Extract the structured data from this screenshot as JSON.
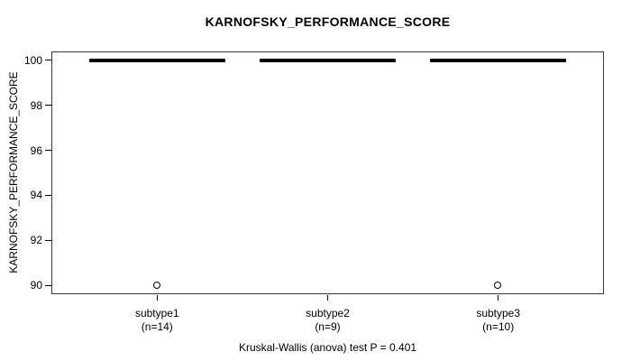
{
  "chart_data": {
    "type": "boxplot",
    "title": "KARNOFSKY_PERFORMANCE_SCORE",
    "ylabel": "KARNOFSKY_PERFORMANCE_SCORE",
    "footer": "Kruskal-Wallis (anova) test P = 0.401",
    "ylim": [
      89.6,
      100.4
    ],
    "yticks": [
      90,
      92,
      94,
      96,
      98,
      100
    ],
    "grid": false,
    "box_color": "#000000",
    "groups": [
      {
        "label": "subtype1",
        "n_label": "(n=14)",
        "n": 14,
        "whisker_low": 100,
        "q1": 100,
        "median": 100,
        "q3": 100,
        "whisker_high": 100,
        "outliers": [
          90
        ]
      },
      {
        "label": "subtype2",
        "n_label": "(n=9)",
        "n": 9,
        "whisker_low": 100,
        "q1": 100,
        "median": 100,
        "q3": 100,
        "whisker_high": 100,
        "outliers": []
      },
      {
        "label": "subtype3",
        "n_label": "(n=10)",
        "n": 10,
        "whisker_low": 100,
        "q1": 100,
        "median": 100,
        "q3": 100,
        "whisker_high": 100,
        "outliers": [
          90
        ]
      }
    ]
  }
}
